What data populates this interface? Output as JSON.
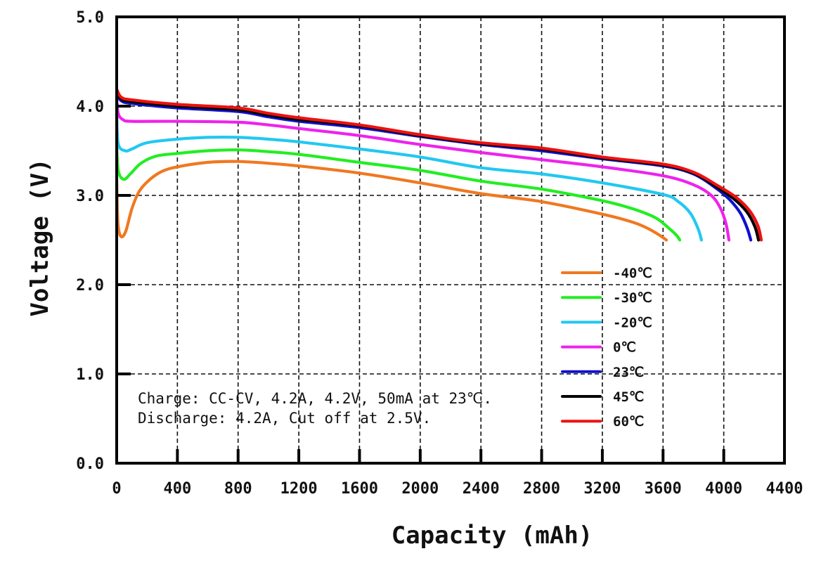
{
  "chart_data": {
    "type": "line",
    "title": "",
    "xlabel": "Capacity (mAh)",
    "ylabel": "Voltage (V)",
    "xlim": [
      0,
      4400
    ],
    "ylim": [
      0.0,
      5.0
    ],
    "xticks": [
      0,
      400,
      800,
      1200,
      1600,
      2000,
      2400,
      2800,
      3200,
      3600,
      4000,
      4400
    ],
    "xtick_labels": [
      "0",
      "400",
      "800",
      "1200",
      "1600",
      "2000",
      "2400",
      "2800",
      "3200",
      "3600",
      "4000",
      "4400"
    ],
    "yticks": [
      0.0,
      1.0,
      2.0,
      3.0,
      4.0,
      5.0
    ],
    "ytick_labels": [
      "0.0",
      "1.0",
      "2.0",
      "3.0",
      "4.0",
      "5.0"
    ],
    "grid": true,
    "legend_position": "bottom-right",
    "annotations": [
      "Charge:  CC-CV, 4.2A, 4.2V, 50mA at 23℃.",
      "Discharge: 4.2A, Cut off at 2.5V."
    ],
    "series": [
      {
        "name": "-40℃",
        "color": "#f07820",
        "points": [
          [
            0,
            3.2
          ],
          [
            8,
            2.7
          ],
          [
            28,
            2.54
          ],
          [
            60,
            2.6
          ],
          [
            100,
            2.85
          ],
          [
            150,
            3.05
          ],
          [
            220,
            3.18
          ],
          [
            300,
            3.27
          ],
          [
            400,
            3.32
          ],
          [
            600,
            3.37
          ],
          [
            800,
            3.38
          ],
          [
            1000,
            3.36
          ],
          [
            1200,
            3.33
          ],
          [
            1600,
            3.25
          ],
          [
            2000,
            3.14
          ],
          [
            2400,
            3.02
          ],
          [
            2800,
            2.93
          ],
          [
            3200,
            2.79
          ],
          [
            3400,
            2.7
          ],
          [
            3500,
            2.63
          ],
          [
            3580,
            2.55
          ],
          [
            3622,
            2.5
          ]
        ]
      },
      {
        "name": "-30℃",
        "color": "#22ee22",
        "points": [
          [
            0,
            3.58
          ],
          [
            10,
            3.28
          ],
          [
            46,
            3.18
          ],
          [
            90,
            3.24
          ],
          [
            160,
            3.36
          ],
          [
            260,
            3.44
          ],
          [
            400,
            3.47
          ],
          [
            600,
            3.5
          ],
          [
            800,
            3.51
          ],
          [
            1000,
            3.49
          ],
          [
            1200,
            3.46
          ],
          [
            1600,
            3.37
          ],
          [
            2000,
            3.28
          ],
          [
            2400,
            3.16
          ],
          [
            2800,
            3.07
          ],
          [
            3200,
            2.94
          ],
          [
            3400,
            2.85
          ],
          [
            3550,
            2.75
          ],
          [
            3640,
            2.63
          ],
          [
            3690,
            2.55
          ],
          [
            3710,
            2.5
          ]
        ]
      },
      {
        "name": "-20℃",
        "color": "#22c8f0",
        "points": [
          [
            0,
            3.95
          ],
          [
            10,
            3.58
          ],
          [
            56,
            3.5
          ],
          [
            100,
            3.52
          ],
          [
            200,
            3.59
          ],
          [
            400,
            3.63
          ],
          [
            600,
            3.65
          ],
          [
            800,
            3.65
          ],
          [
            1000,
            3.63
          ],
          [
            1200,
            3.6
          ],
          [
            1600,
            3.52
          ],
          [
            2000,
            3.43
          ],
          [
            2400,
            3.31
          ],
          [
            2800,
            3.24
          ],
          [
            3200,
            3.14
          ],
          [
            3600,
            3.01
          ],
          [
            3700,
            2.93
          ],
          [
            3780,
            2.8
          ],
          [
            3830,
            2.63
          ],
          [
            3853,
            2.5
          ]
        ]
      },
      {
        "name": "0℃",
        "color": "#ee22ee",
        "points": [
          [
            0,
            4.1
          ],
          [
            10,
            3.92
          ],
          [
            40,
            3.85
          ],
          [
            100,
            3.83
          ],
          [
            400,
            3.83
          ],
          [
            800,
            3.82
          ],
          [
            1000,
            3.79
          ],
          [
            1200,
            3.75
          ],
          [
            1600,
            3.67
          ],
          [
            2000,
            3.57
          ],
          [
            2400,
            3.48
          ],
          [
            2800,
            3.4
          ],
          [
            3200,
            3.32
          ],
          [
            3600,
            3.22
          ],
          [
            3800,
            3.12
          ],
          [
            3918,
            3.0
          ],
          [
            3980,
            2.85
          ],
          [
            4015,
            2.68
          ],
          [
            4034,
            2.5
          ]
        ]
      },
      {
        "name": "23℃",
        "color": "#1010d0",
        "points": [
          [
            0,
            4.14
          ],
          [
            30,
            4.06
          ],
          [
            100,
            4.03
          ],
          [
            400,
            3.98
          ],
          [
            800,
            3.94
          ],
          [
            1000,
            3.88
          ],
          [
            1200,
            3.83
          ],
          [
            1600,
            3.76
          ],
          [
            2000,
            3.66
          ],
          [
            2400,
            3.57
          ],
          [
            2800,
            3.5
          ],
          [
            3200,
            3.41
          ],
          [
            3600,
            3.33
          ],
          [
            3800,
            3.24
          ],
          [
            3950,
            3.08
          ],
          [
            4040,
            2.95
          ],
          [
            4110,
            2.8
          ],
          [
            4155,
            2.63
          ],
          [
            4178,
            2.5
          ]
        ]
      },
      {
        "name": "45℃",
        "color": "#000000",
        "points": [
          [
            0,
            4.16
          ],
          [
            30,
            4.08
          ],
          [
            100,
            4.05
          ],
          [
            400,
            4.0
          ],
          [
            800,
            3.96
          ],
          [
            1000,
            3.9
          ],
          [
            1200,
            3.85
          ],
          [
            1600,
            3.78
          ],
          [
            2000,
            3.67
          ],
          [
            2400,
            3.58
          ],
          [
            2800,
            3.52
          ],
          [
            3200,
            3.42
          ],
          [
            3600,
            3.34
          ],
          [
            3800,
            3.25
          ],
          [
            3950,
            3.1
          ],
          [
            4060,
            2.97
          ],
          [
            4150,
            2.82
          ],
          [
            4205,
            2.65
          ],
          [
            4229,
            2.5
          ]
        ]
      },
      {
        "name": "60℃",
        "color": "#ee1111",
        "points": [
          [
            0,
            4.19
          ],
          [
            30,
            4.1
          ],
          [
            100,
            4.07
          ],
          [
            400,
            4.02
          ],
          [
            800,
            3.98
          ],
          [
            1000,
            3.92
          ],
          [
            1200,
            3.87
          ],
          [
            1600,
            3.79
          ],
          [
            2000,
            3.68
          ],
          [
            2400,
            3.59
          ],
          [
            2800,
            3.53
          ],
          [
            3200,
            3.43
          ],
          [
            3600,
            3.35
          ],
          [
            3800,
            3.26
          ],
          [
            3950,
            3.12
          ],
          [
            4080,
            2.98
          ],
          [
            4170,
            2.83
          ],
          [
            4225,
            2.66
          ],
          [
            4247,
            2.5
          ]
        ]
      }
    ]
  }
}
